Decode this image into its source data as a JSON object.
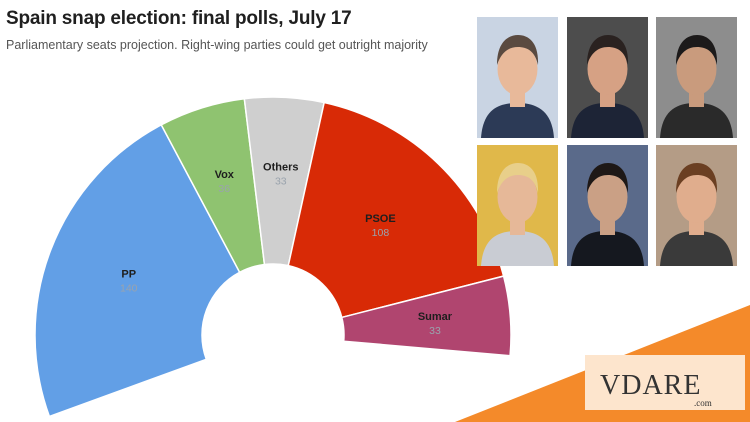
{
  "header": {
    "title": "Spain snap election: final polls, July 17",
    "subtitle": "Parliamentary seats projection. Right-wing parties could get outright majority"
  },
  "chart_data": {
    "type": "pie",
    "title": "Spain snap election: final polls, July 17",
    "subtitle": "Parliamentary seats projection. Right-wing parties could get outright majority",
    "categories": [
      "PP",
      "Vox",
      "Others",
      "PSOE",
      "Sumar"
    ],
    "values": [
      140,
      36,
      33,
      108,
      33
    ],
    "colors": [
      "#629fe6",
      "#8fc370",
      "#cfcfcf",
      "#d82a06",
      "#b0456f"
    ],
    "style": "half-donut (parliament)"
  },
  "photos": [
    {
      "name": "portrait-1-icon",
      "bg": "#c9d4e3",
      "skin": "#e8b99a",
      "hair": "#5a4a40",
      "suit": "#2c3a56"
    },
    {
      "name": "portrait-2-icon",
      "bg": "#4d4d4d",
      "skin": "#d6a184",
      "hair": "#2a2220",
      "suit": "#1d2436"
    },
    {
      "name": "portrait-3-icon",
      "bg": "#8d8d8d",
      "skin": "#c99b7d",
      "hair": "#1c1a1a",
      "suit": "#2a2a2a"
    },
    {
      "name": "portrait-4-icon",
      "bg": "#e0b84a",
      "skin": "#e6b898",
      "hair": "#e8cf8a",
      "suit": "#c9ccd3"
    },
    {
      "name": "portrait-5-icon",
      "bg": "#5a6a8a",
      "skin": "#caa085",
      "hair": "#1e1816",
      "suit": "#15181f"
    },
    {
      "name": "portrait-6-icon",
      "bg": "#b49c86",
      "skin": "#e0ad8d",
      "hair": "#6b3f22",
      "suit": "#3a3a3a"
    }
  ],
  "brand": {
    "name": "VDARE",
    "suffix": ".com",
    "accent": "#f48a2a"
  }
}
